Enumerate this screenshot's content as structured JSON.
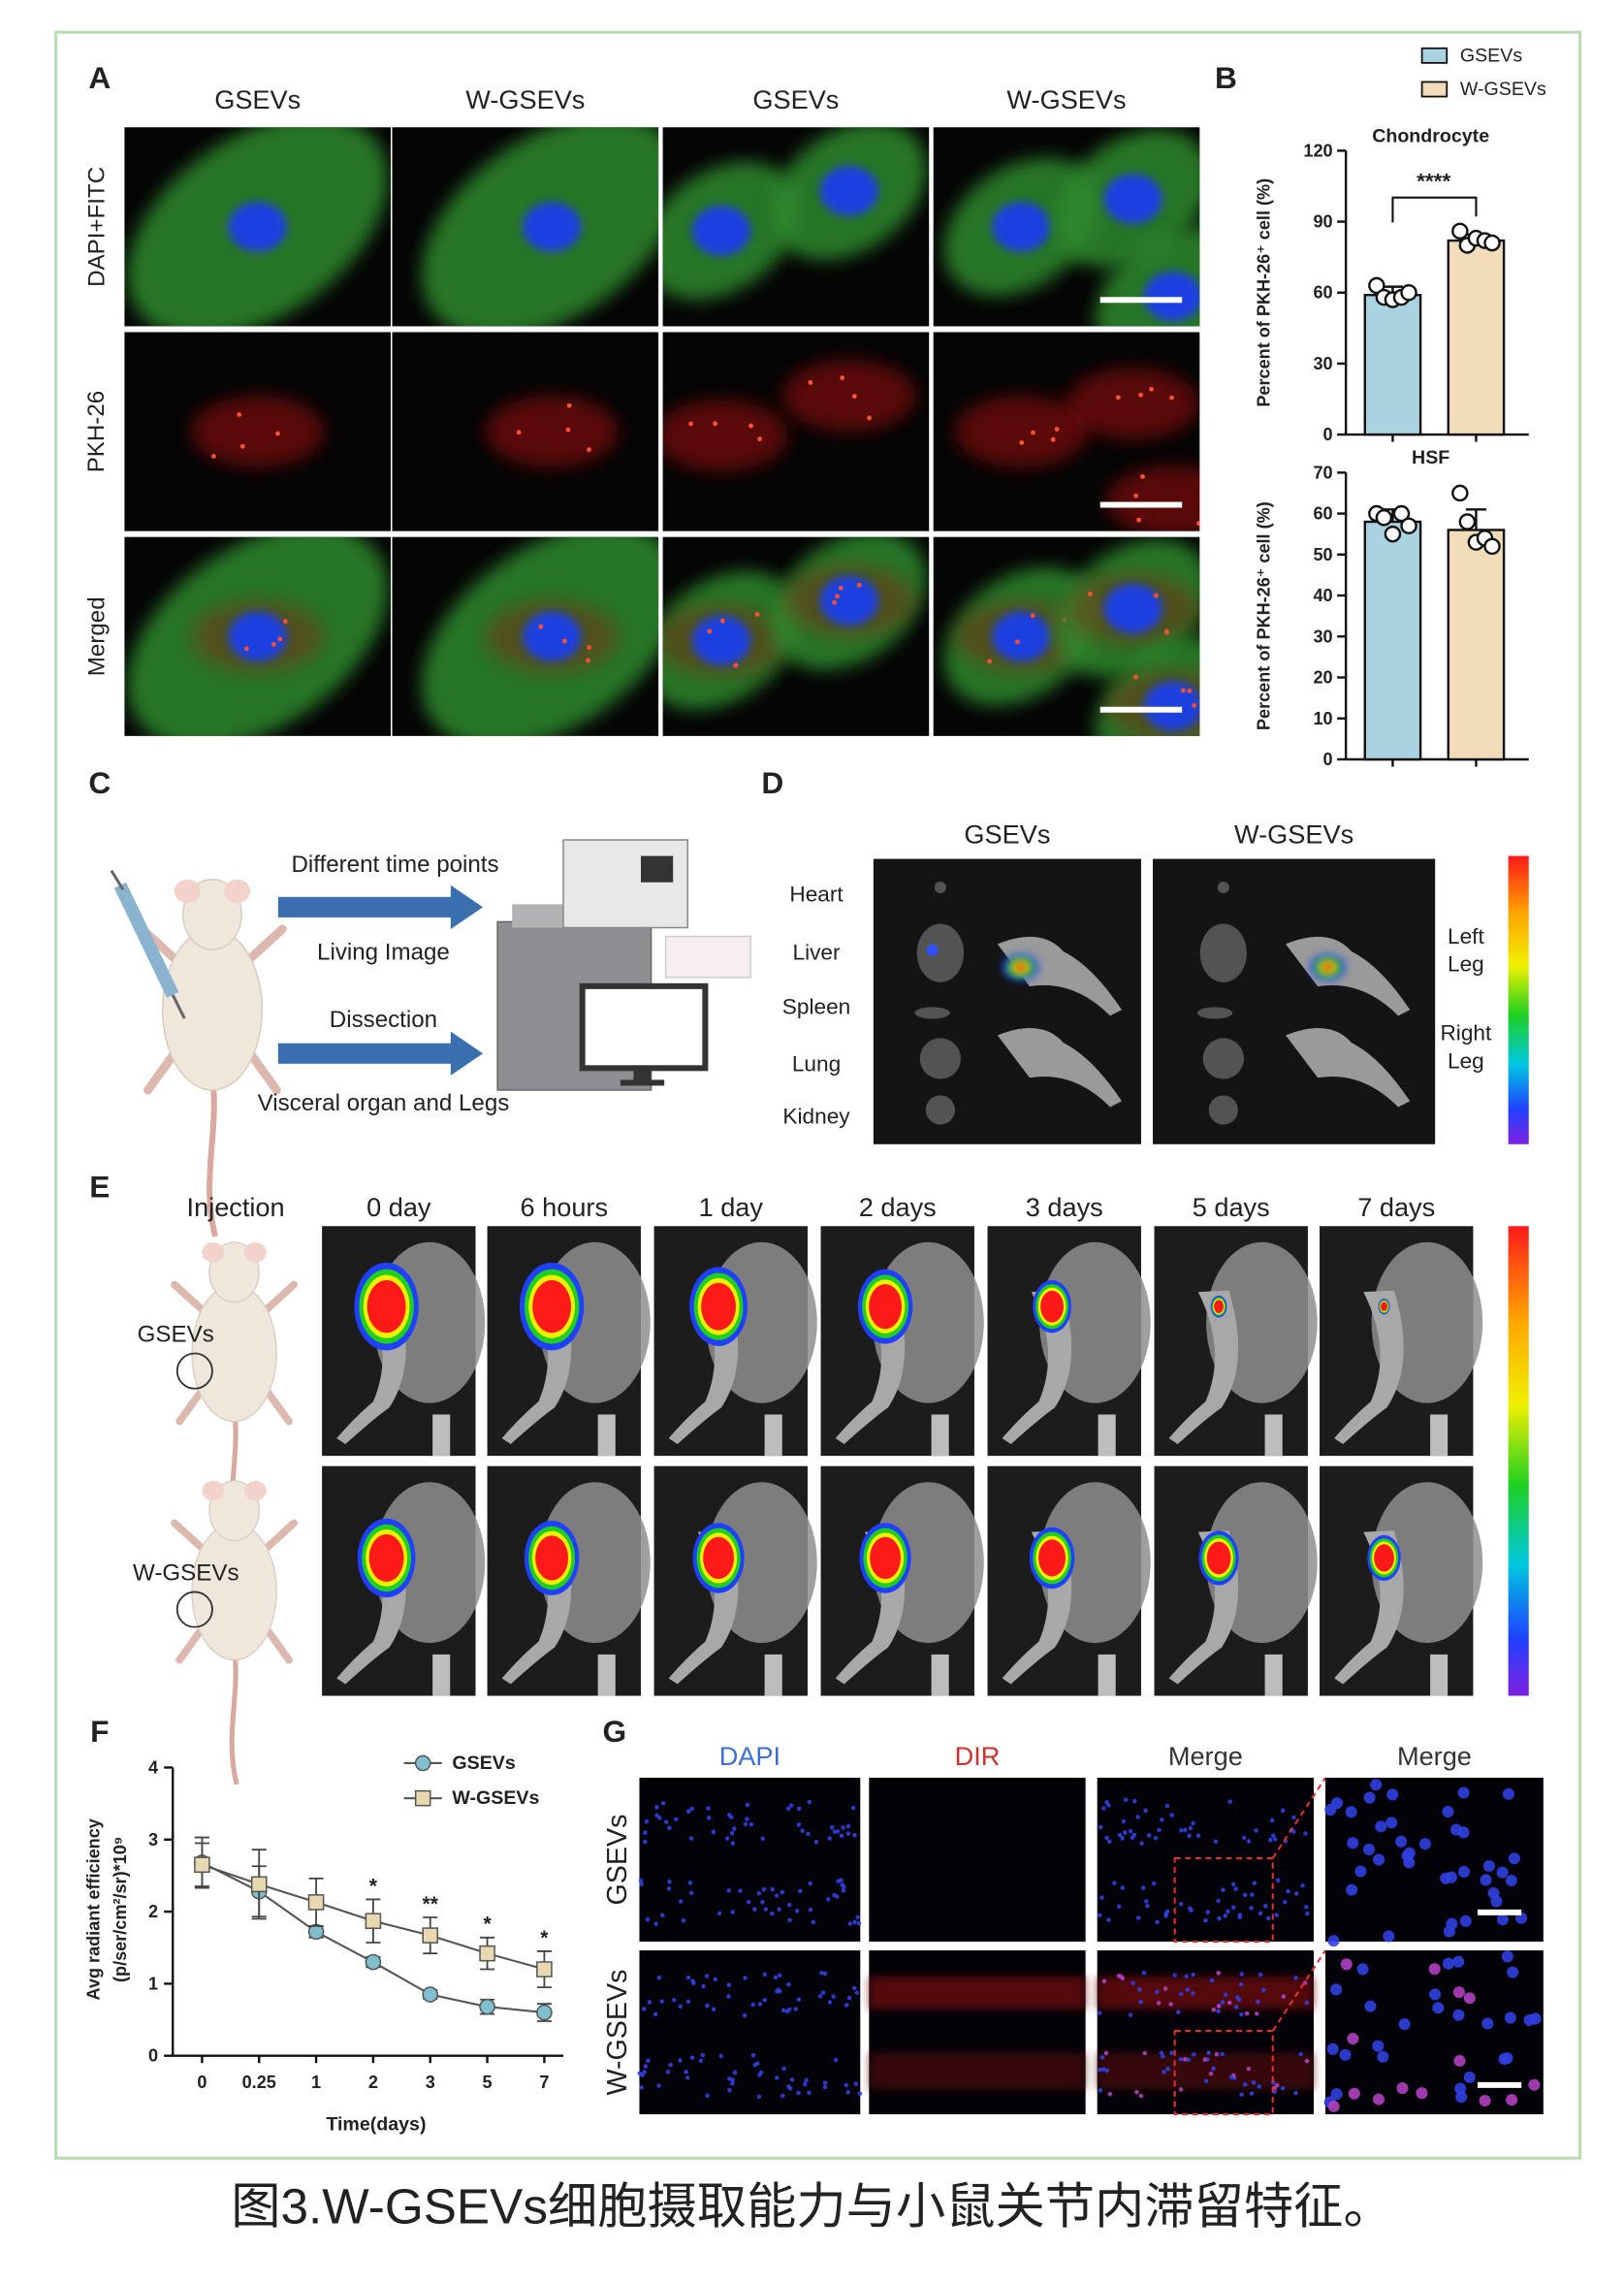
{
  "caption": "图3.W-GSEVs细胞摄取能力与小鼠关节内滞留特征。",
  "panel_a": {
    "label": "A",
    "columns": [
      "GSEVs",
      "W-GSEVs",
      "GSEVs",
      "W-GSEVs"
    ],
    "rows": [
      "DAPI+FITC",
      "PKH-26",
      "Merged"
    ]
  },
  "panel_b": {
    "label": "B"
  },
  "panel_c": {
    "label": "C",
    "steps": [
      "Different time points",
      "Living Image",
      "Dissection",
      "Visceral organ and Legs"
    ]
  },
  "panel_d": {
    "label": "D",
    "columns": [
      "GSEVs",
      "W-GSEVs"
    ],
    "organs": [
      "Heart",
      "Liver",
      "Spleen",
      "Lung",
      "Kidney"
    ],
    "legs": [
      [
        "Left",
        "Leg"
      ],
      [
        "Right",
        "Leg"
      ]
    ]
  },
  "panel_e": {
    "label": "E",
    "header": "Injection",
    "times": [
      "0 day",
      "6 hours",
      "1 day",
      "2 days",
      "3 days",
      "5 days",
      "7 days"
    ],
    "groups": [
      "GSEVs",
      "W-GSEVs"
    ]
  },
  "panel_f": {
    "label": "F"
  },
  "panel_g": {
    "label": "G",
    "columns": [
      "DAPI",
      "DIR",
      "Merge",
      "Merge"
    ],
    "rows": [
      "GSEVs",
      "W-GSEVs"
    ]
  },
  "chart_data": [
    {
      "type": "bar",
      "title": "Chondrocyte",
      "y_label": "Percent of PKH-26⁺ cell (%)",
      "ylim": [
        0,
        120
      ],
      "yticks": [
        0,
        30,
        60,
        90,
        120
      ],
      "significance": "****",
      "series": [
        {
          "name": "GSEVs",
          "color": "#a9d3e1",
          "values": [
            59
          ],
          "errors": [
            3.5
          ],
          "points": [
            63,
            58,
            57,
            58,
            60
          ]
        },
        {
          "name": "W-GSEVs",
          "color": "#f0dcb8",
          "values": [
            82
          ],
          "errors": [
            2.5
          ],
          "points": [
            86,
            80,
            83,
            82,
            81
          ]
        }
      ]
    },
    {
      "type": "bar",
      "title": "HSF",
      "y_label": "Percent of PKH-26⁺ cell (%)",
      "ylim": [
        0,
        70
      ],
      "yticks": [
        0,
        10,
        20,
        30,
        40,
        50,
        60,
        70
      ],
      "series": [
        {
          "color": "#a9d3e1",
          "values": [
            58
          ],
          "errors": [
            3
          ],
          "points": [
            60,
            59,
            55,
            60,
            57
          ]
        },
        {
          "color": "#f0dcb8",
          "values": [
            56
          ],
          "errors": [
            5
          ],
          "points": [
            65,
            58,
            53,
            54,
            52
          ]
        }
      ]
    },
    {
      "type": "line",
      "x_label": "Time(days)",
      "y_label": [
        "Avg radiant efficiency",
        "(p/ser/cm²/sr)*10⁹"
      ],
      "categories": [
        "0",
        "0.25",
        "1",
        "2",
        "3",
        "5",
        "7"
      ],
      "ylim": [
        0,
        4
      ],
      "yticks": [
        0,
        1,
        2,
        3,
        4
      ],
      "significance": [
        null,
        null,
        null,
        "*",
        "**",
        "*",
        "*"
      ],
      "series": [
        {
          "name": "GSEVs",
          "color": "#7fbfcf",
          "marker": "circle",
          "values": [
            2.68,
            2.28,
            1.72,
            1.3,
            0.85,
            0.68,
            0.6
          ],
          "errors": [
            0.35,
            0.35,
            0.08,
            0.07,
            0.06,
            0.1,
            0.12
          ]
        },
        {
          "name": "W-GSEVs",
          "color": "#e8d8b0",
          "marker": "square",
          "values": [
            2.65,
            2.38,
            2.13,
            1.87,
            1.67,
            1.42,
            1.2
          ],
          "errors": [
            0.3,
            0.48,
            0.33,
            0.3,
            0.25,
            0.22,
            0.25
          ]
        }
      ]
    }
  ]
}
